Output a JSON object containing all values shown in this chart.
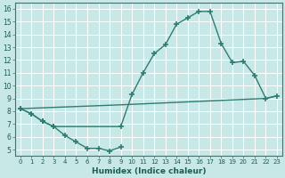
{
  "xlabel": "Humidex (Indice chaleur)",
  "bg_color": "#c8e8e8",
  "grid_color": "#ffffff",
  "line_color": "#2e7d6e",
  "xlim": [
    -0.5,
    23.5
  ],
  "ylim": [
    4.5,
    16.5
  ],
  "yticks": [
    5,
    6,
    7,
    8,
    9,
    10,
    11,
    12,
    13,
    14,
    15,
    16
  ],
  "xticks": [
    0,
    1,
    2,
    3,
    4,
    5,
    6,
    7,
    8,
    9,
    10,
    11,
    12,
    13,
    14,
    15,
    16,
    17,
    18,
    19,
    20,
    21,
    22,
    23
  ],
  "line1_x": [
    0,
    1,
    2,
    3,
    4,
    5,
    6,
    7,
    8,
    9
  ],
  "line1_y": [
    8.2,
    7.8,
    7.2,
    6.8,
    6.1,
    5.6,
    5.1,
    5.1,
    4.9,
    5.2
  ],
  "line2_x": [
    0,
    1,
    2,
    3,
    9,
    10,
    11,
    12,
    13,
    14,
    15,
    16,
    17,
    18,
    19,
    20,
    21,
    22,
    23
  ],
  "line2_y": [
    8.2,
    7.8,
    7.2,
    6.8,
    6.8,
    9.3,
    11.0,
    12.5,
    13.2,
    14.8,
    15.3,
    15.8,
    15.8,
    13.3,
    11.8,
    11.9,
    10.8,
    9.0,
    9.2
  ],
  "line3_x": [
    0,
    9,
    22,
    23
  ],
  "line3_y": [
    8.2,
    8.5,
    9.0,
    9.2
  ]
}
